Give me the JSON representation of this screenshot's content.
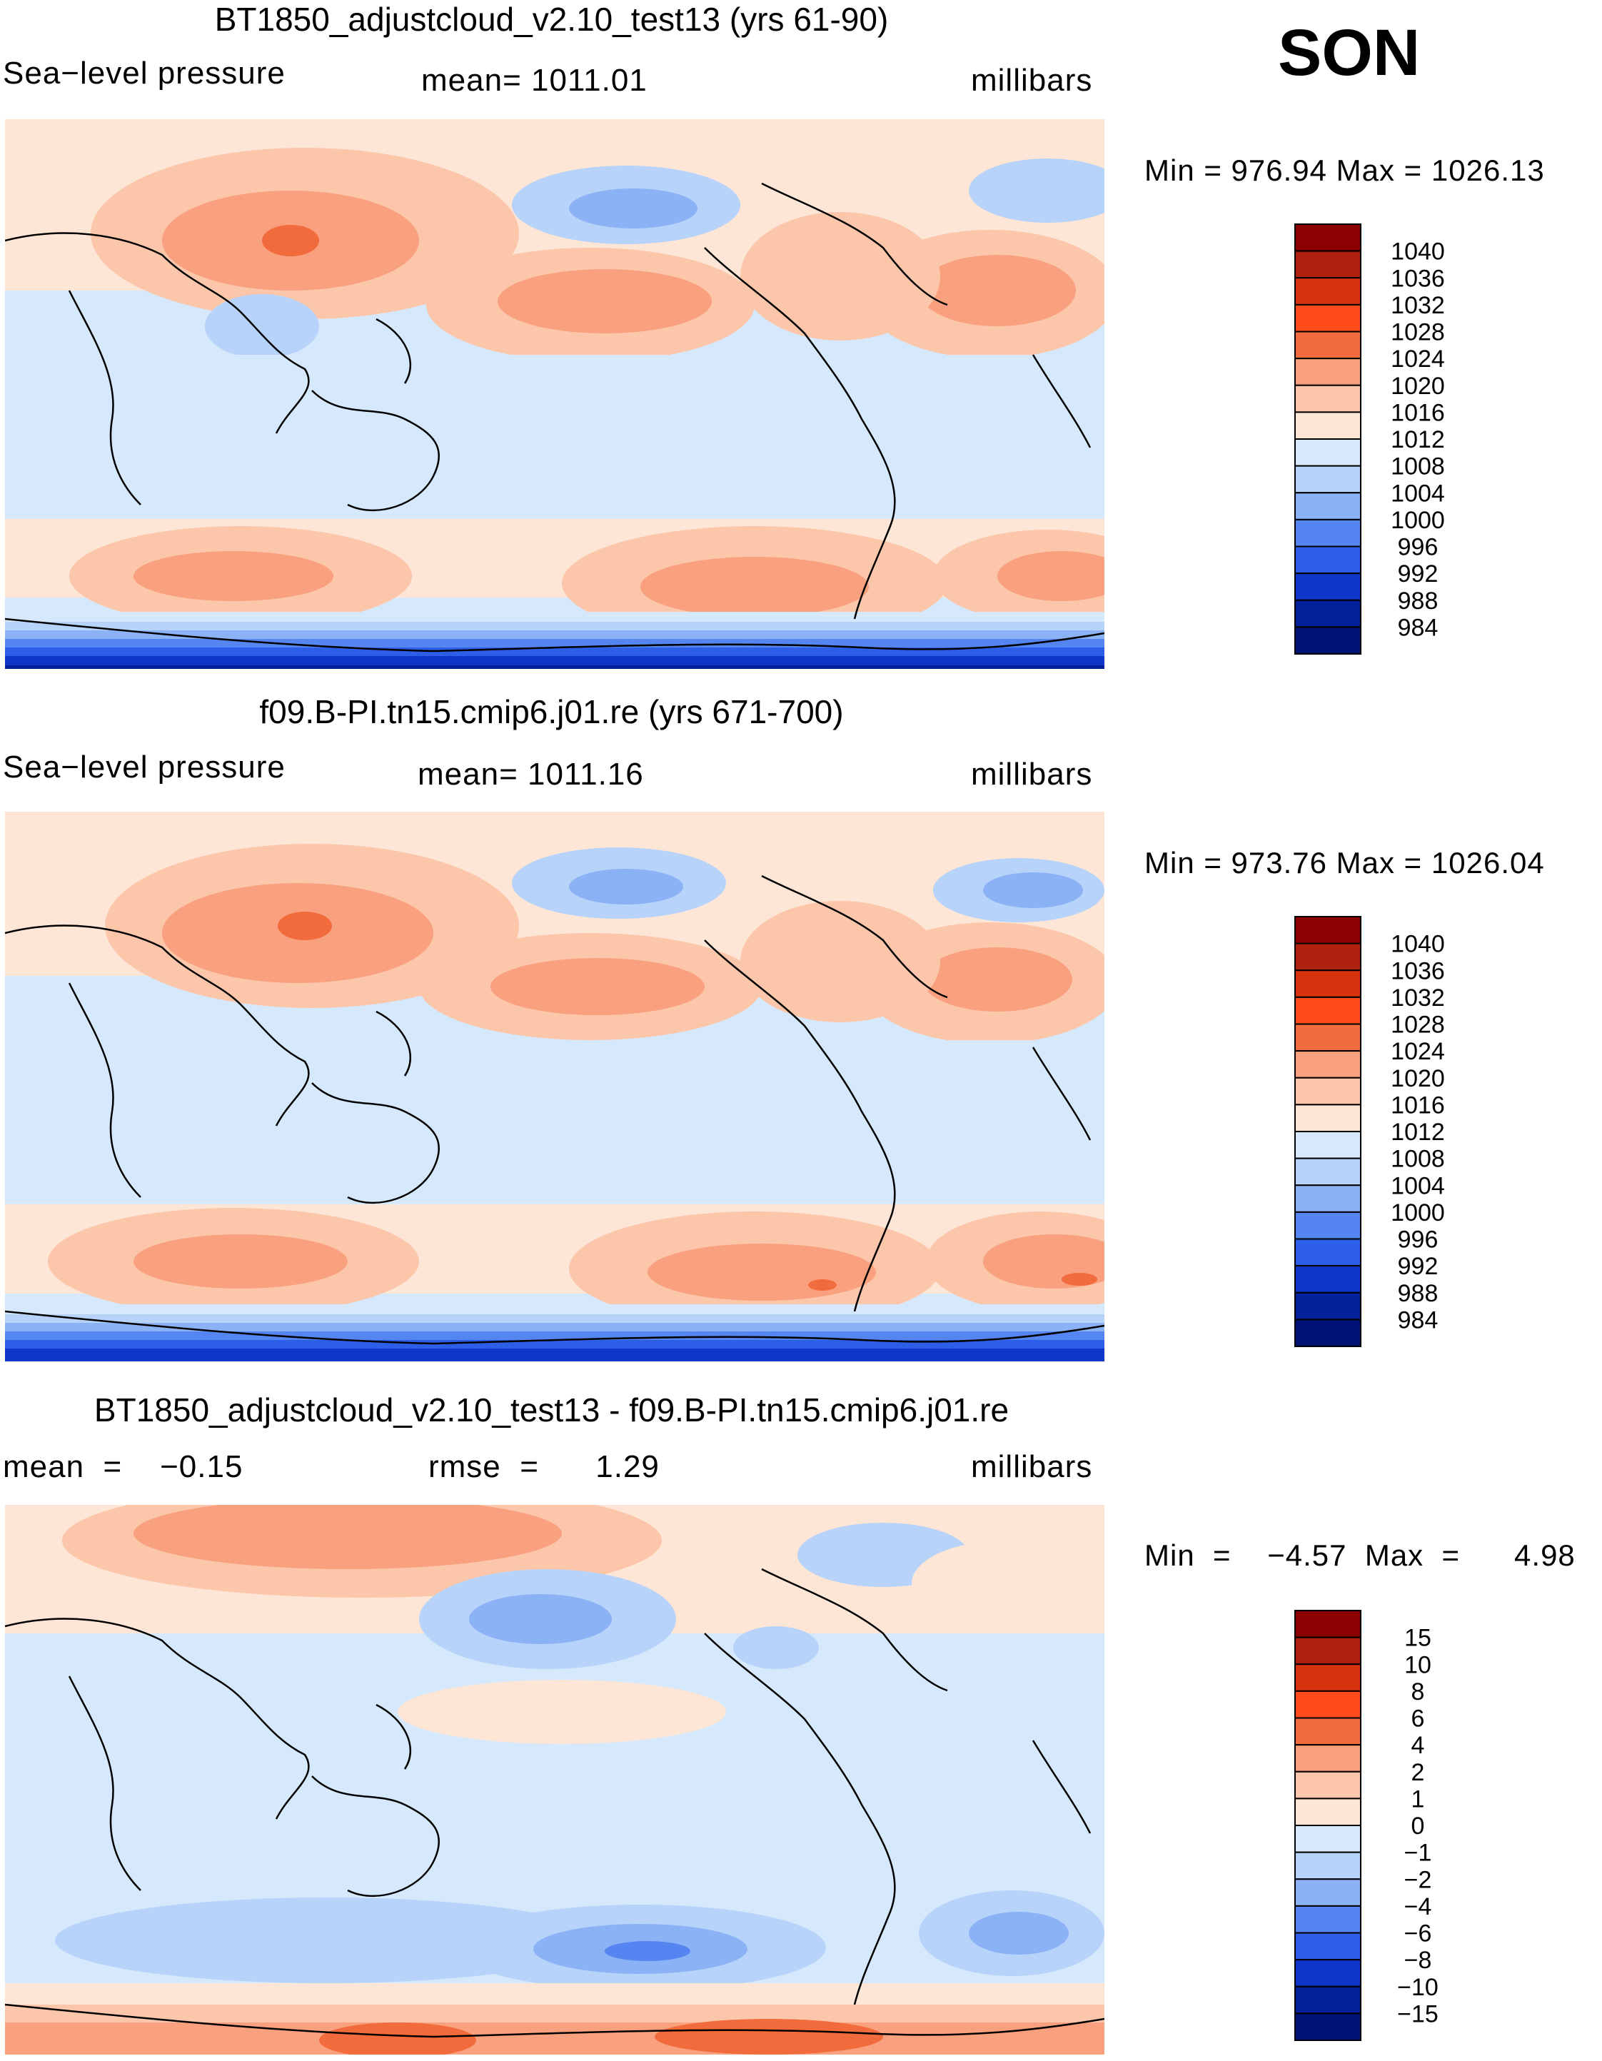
{
  "season": "SON",
  "chart_data": [
    {
      "type": "heatmap",
      "title": "BT1850_adjustcloud_v2.10_test13 (yrs 61-90)",
      "variable": "Sea−level pressure",
      "mean_text": "mean= 1011.01",
      "units": "millibars",
      "min_max_text": "Min  =  976.94  Max  =  1026.13",
      "min": 976.94,
      "max": 1026.13,
      "colorbar": {
        "levels": [
          "1040",
          "1036",
          "1032",
          "1028",
          "1024",
          "1020",
          "1016",
          "1012",
          "1008",
          "1004",
          "1000",
          "996",
          "992",
          "988",
          "984"
        ],
        "colors": [
          "#8b0000",
          "#b0200e",
          "#d8320f",
          "#ff4c1a",
          "#f26b3c",
          "#f9a07e",
          "#fcc6aa",
          "#fde6d6",
          "#d6e8fb",
          "#b7d3fa",
          "#8ab2f5",
          "#5585f0",
          "#2d5ee8",
          "#0e36c8",
          "#04209a",
          "#001276"
        ]
      }
    },
    {
      "type": "heatmap",
      "title": "f09.B-PI.tn15.cmip6.j01.re (yrs 671-700)",
      "variable": "Sea−level pressure",
      "mean_text": "mean= 1011.16",
      "units": "millibars",
      "min_max_text": "Min  =  973.76  Max  =  1026.04",
      "min": 973.76,
      "max": 1026.04,
      "colorbar": {
        "levels": [
          "1040",
          "1036",
          "1032",
          "1028",
          "1024",
          "1020",
          "1016",
          "1012",
          "1008",
          "1004",
          "1000",
          "996",
          "992",
          "988",
          "984"
        ],
        "colors": [
          "#8b0000",
          "#b0200e",
          "#d8320f",
          "#ff4c1a",
          "#f26b3c",
          "#f9a07e",
          "#fcc6aa",
          "#fde6d6",
          "#d6e8fb",
          "#b7d3fa",
          "#8ab2f5",
          "#5585f0",
          "#2d5ee8",
          "#0e36c8",
          "#04209a",
          "#001276"
        ]
      }
    },
    {
      "type": "heatmap",
      "title": "BT1850_adjustcloud_v2.10_test13 - f09.B-PI.tn15.cmip6.j01.re",
      "mean_text": "mean  =    −0.15",
      "rmse_text": "rmse  =      1.29",
      "units": "millibars",
      "min_max_text": "Min  =    −4.57  Max  =      4.98",
      "min": -4.57,
      "max": 4.98,
      "colorbar": {
        "levels": [
          "15",
          "10",
          "8",
          "6",
          "4",
          "2",
          "1",
          "0",
          "−1",
          "−2",
          "−4",
          "−6",
          "−8",
          "−10",
          "−15"
        ],
        "colors": [
          "#8b0000",
          "#b0200e",
          "#d8320f",
          "#ff4c1a",
          "#f26b3c",
          "#f9a07e",
          "#fcc6aa",
          "#fde6d6",
          "#d6e8fb",
          "#b7d3fa",
          "#8ab2f5",
          "#5585f0",
          "#2d5ee8",
          "#0e36c8",
          "#04209a",
          "#001276"
        ]
      }
    }
  ]
}
